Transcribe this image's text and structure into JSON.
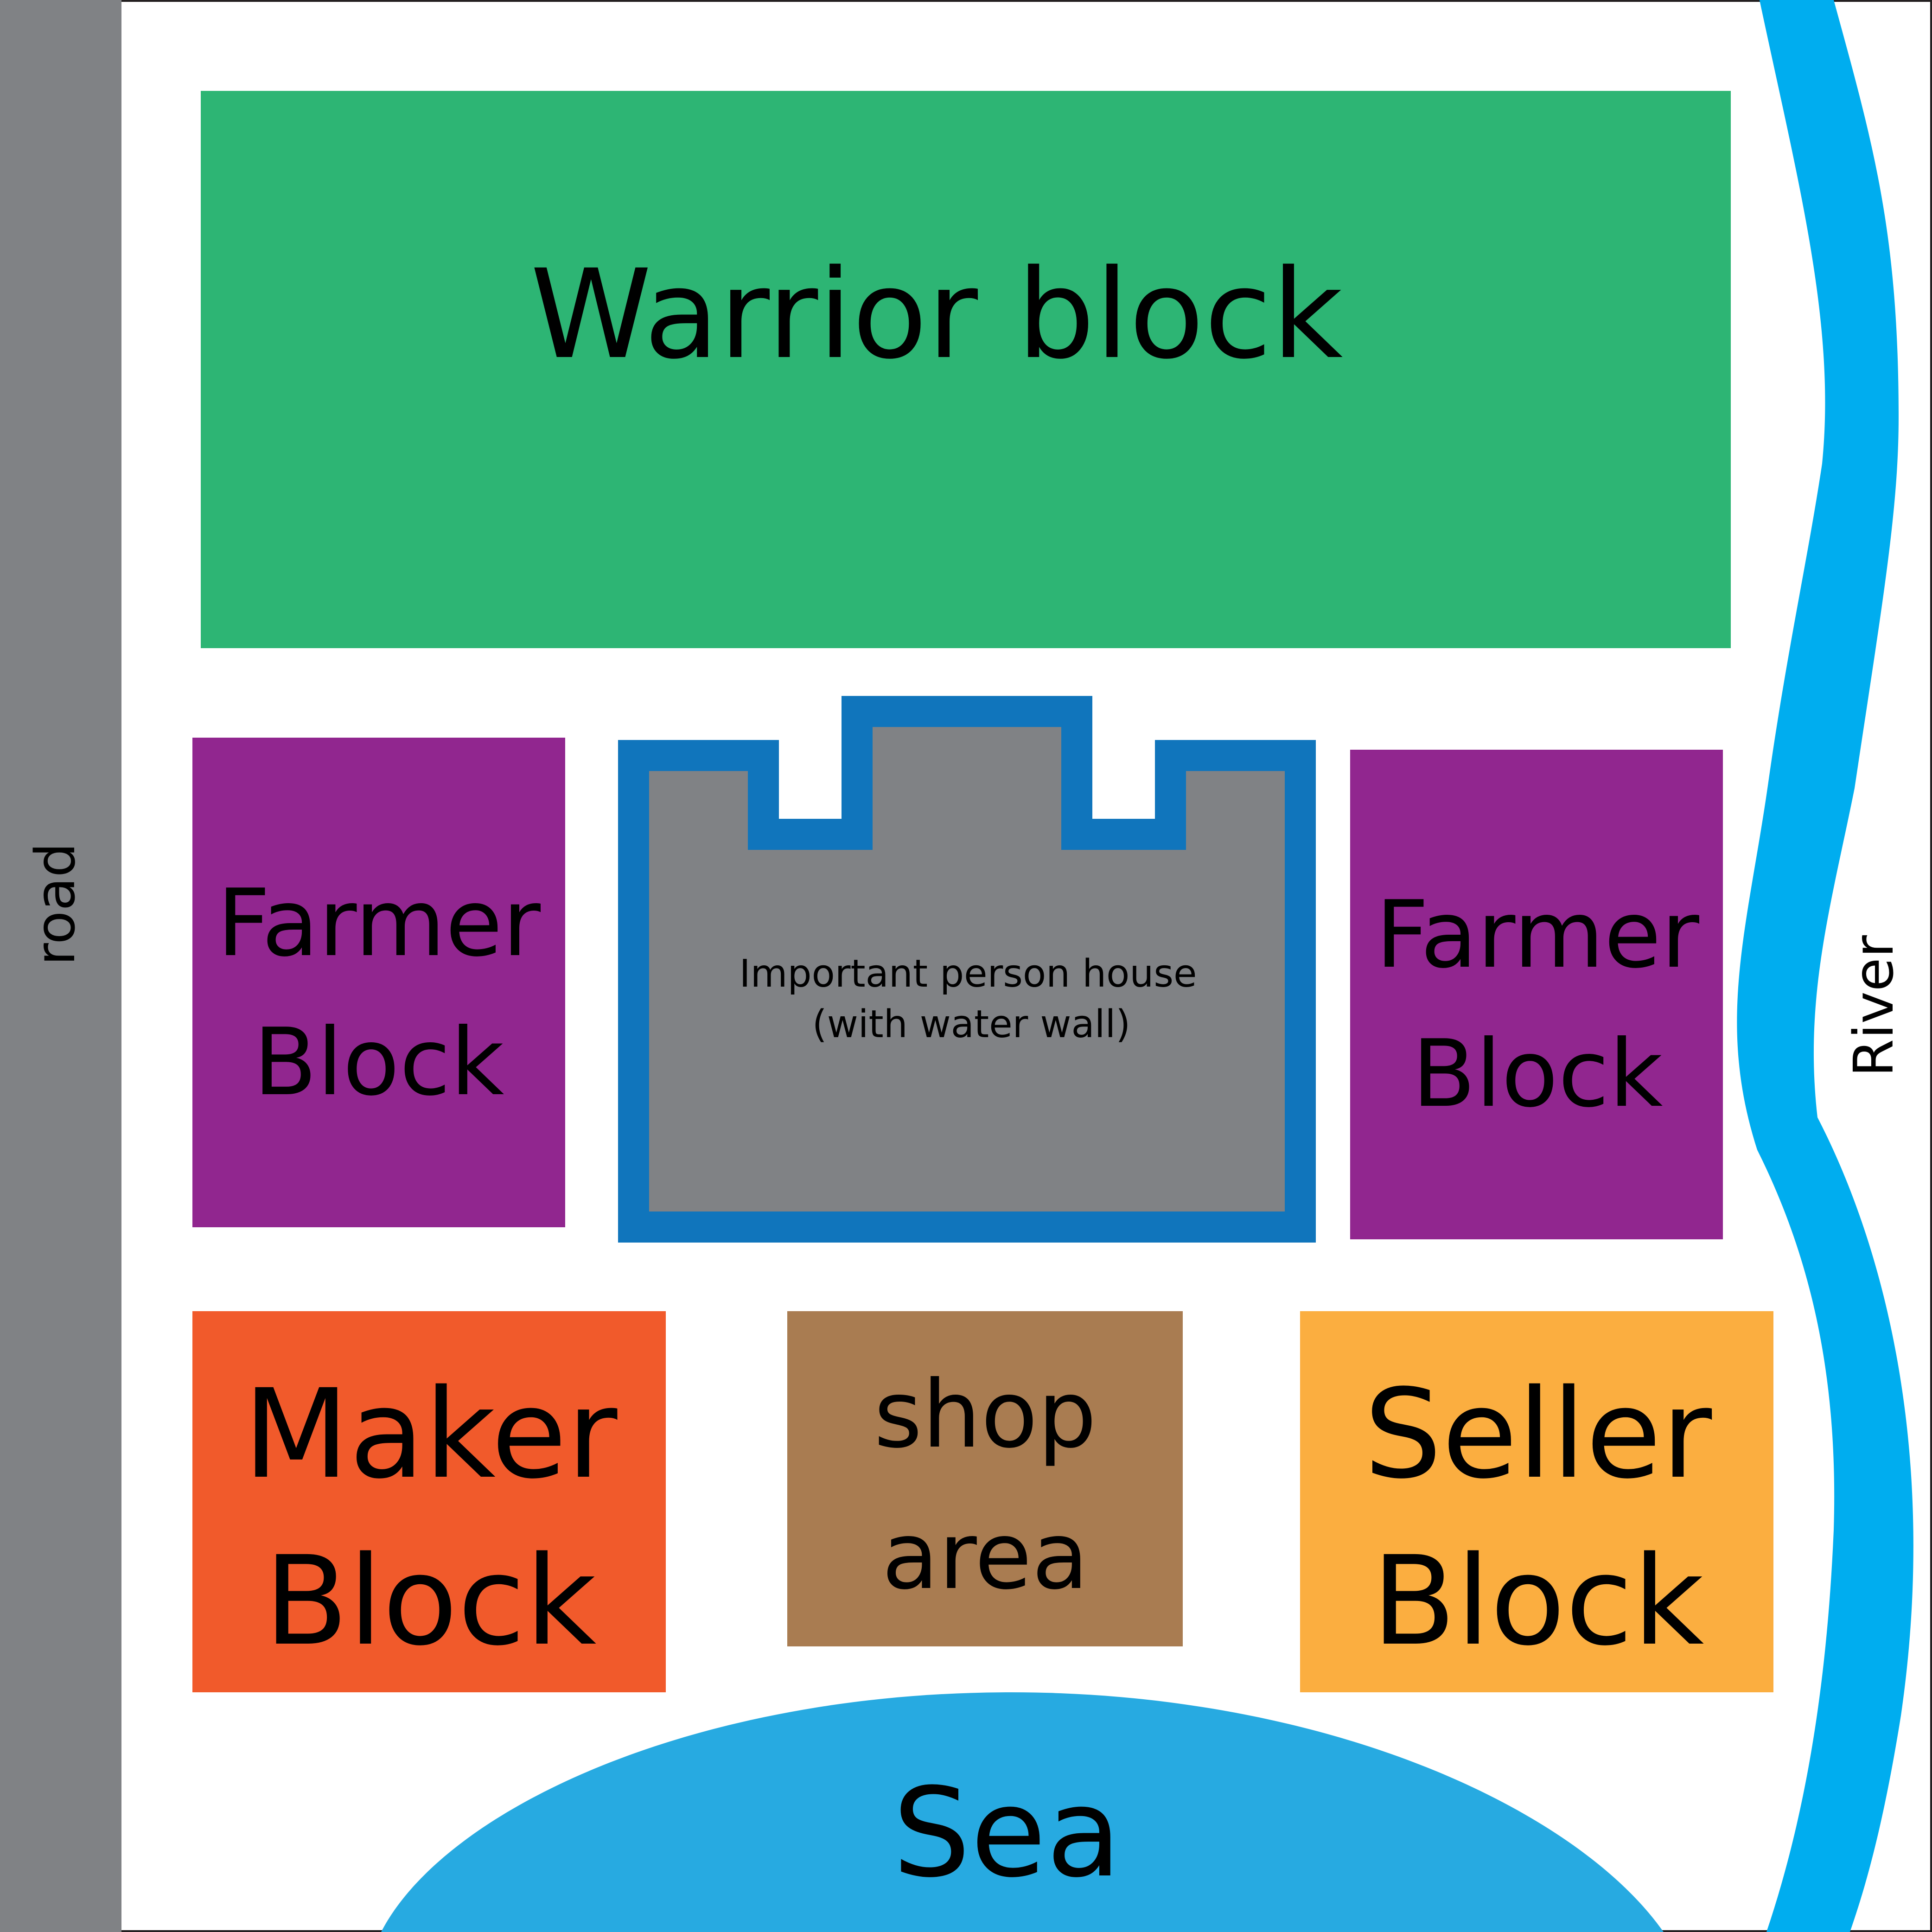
{
  "map": {
    "road": {
      "label": "road"
    },
    "river": {
      "label": "River"
    },
    "sea": {
      "label": "Sea"
    },
    "warrior_block": {
      "label": "Warrior block"
    },
    "farmer_block_left": {
      "line1": "Farmer",
      "line2": "Block"
    },
    "farmer_block_right": {
      "line1": "Farmer",
      "line2": "Block"
    },
    "important_house": {
      "line1": "Important person house",
      "line2": "(with water wall)"
    },
    "maker_block": {
      "line1": "Maker",
      "line2": "Block"
    },
    "shop_area": {
      "line1": "shop",
      "line2": "area"
    },
    "seller_block": {
      "line1": "Seller",
      "line2": "Block"
    }
  },
  "colors": {
    "road": "#808285",
    "river": "#00adef",
    "sea": "#27aae1",
    "warrior": "#2db574",
    "farmer": "#91268f",
    "house_fill": "#808285",
    "water_wall": "#1075bc",
    "maker": "#f15a2b",
    "shop": "#a97c51",
    "seller": "#fbae40"
  }
}
